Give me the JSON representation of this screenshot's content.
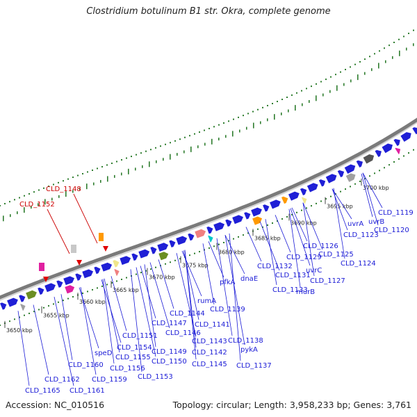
{
  "title": "Clostridium botulinum B1 str. Okra, complete genome",
  "footer": {
    "accession": "Accession: NC_010516",
    "summary": "Topology: circular; Length: 3,958,233 bp; Genes: 3,761"
  },
  "colors": {
    "backbone": "#8c8c8c",
    "gene_default": "#1f1fd6",
    "label_blue": "#1a1ad6",
    "label_red": "#cc0000",
    "dots": "#2e7d2e"
  },
  "scale_ticks": [
    "3650 kbp",
    "3655 kbp",
    "3660 kbp",
    "3665 kbp",
    "3670 kbp",
    "3675 kbp",
    "3680 kbp",
    "3685 kbp",
    "3690 kbp",
    "3695 kbp",
    "3700 kbp"
  ],
  "gene_labels": [
    "CLD_1165",
    "CLD_1162",
    "CLD_1161",
    "CLD_1160",
    "CLD_1159",
    "speD",
    "CLD_1156",
    "CLD_1155",
    "CLD_1154",
    "CLD_1153",
    "CLD_1151",
    "CLD_1150",
    "CLD_1149",
    "CLD_1147",
    "CLD_1146",
    "CLD_1145",
    "CLD_1144",
    "CLD_1143",
    "CLD_1142",
    "CLD_1141",
    "rumA",
    "CLD_1139",
    "CLD_1138",
    "pykA",
    "CLD_1137",
    "pfkA",
    "dnaE",
    "CLD_1133",
    "CLD_1132",
    "CLD_1131",
    "murB",
    "CLD_1129",
    "uvrC",
    "CLD_1127",
    "CLD_1126",
    "CLD_1125",
    "CLD_1124",
    "CLD_1123",
    "uvrA",
    "uvrB",
    "CLD_1120",
    "CLD_1119"
  ],
  "highlight_labels": [
    "CLD_1152",
    "CLD_1148"
  ]
}
